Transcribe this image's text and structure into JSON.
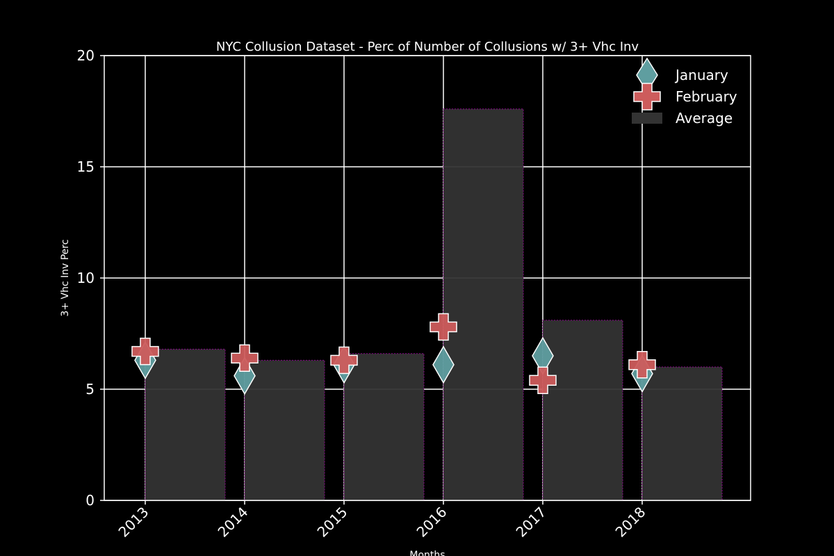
{
  "chart_data": {
    "type": "bar",
    "title": "NYC Collusion Dataset - Perc of Number of Collusions w/ 3+ Vhc Inv",
    "xlabel": "Months",
    "ylabel": "3+ Vhc Inv Perc",
    "categories": [
      "2013",
      "2014",
      "2015",
      "2016",
      "2017",
      "2018"
    ],
    "ylim": [
      0,
      20
    ],
    "yticks": [
      "0",
      "5",
      "10",
      "15",
      "20"
    ],
    "grid": true,
    "legend_position": "top-right",
    "series": [
      {
        "name": "January",
        "kind": "scatter",
        "marker": "diamond",
        "color": "#5f9ea0",
        "values": [
          6.3,
          5.6,
          6.1,
          6.1,
          6.5,
          5.7
        ]
      },
      {
        "name": "February",
        "kind": "scatter",
        "marker": "plus",
        "color": "#cd5c5c",
        "values": [
          6.7,
          6.4,
          6.3,
          7.8,
          5.4,
          6.1
        ]
      },
      {
        "name": "Average",
        "kind": "bar",
        "color": "#333333",
        "edge_color": "#8b008b",
        "values": [
          6.8,
          6.3,
          6.6,
          17.6,
          8.1,
          6.0
        ]
      }
    ]
  }
}
